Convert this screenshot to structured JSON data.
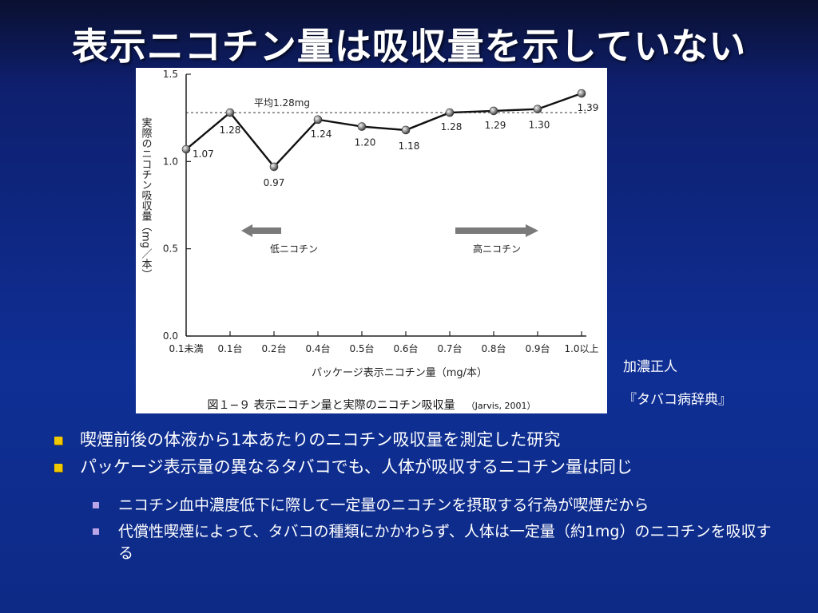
{
  "slide": {
    "title": "表示ニコチン量は吸収量を示していない"
  },
  "figure": {
    "caption": "図１−９ 表示ニコチン量と実際のニコチン吸収量",
    "citation": "（Jarvis, 2001）"
  },
  "side_notes": {
    "author": "加濃正人",
    "book": "『タバコ病辞典』"
  },
  "bullets": [
    "喫煙前後の体液から1本あたりのニコチン吸収量を測定した研究",
    "パッケージ表示量の異なるタバコでも、人体が吸収するニコチン量は同じ"
  ],
  "sub_bullets": [
    "ニコチン血中濃度低下に際して一定量のニコチンを摂取する行為が喫煙だから",
    "代償性喫煙によって、タバコの種類にかかわらず、人体は一定量（約1mg）のニコチンを吸収する"
  ],
  "chart_data": {
    "type": "line",
    "categories": [
      "0.1未満",
      "0.1台",
      "0.2台",
      "0.4台",
      "0.5台",
      "0.6台",
      "0.7台",
      "0.8台",
      "0.9台",
      "1.0以上"
    ],
    "values": [
      1.07,
      1.28,
      0.97,
      1.24,
      1.2,
      1.18,
      1.28,
      1.29,
      1.3,
      1.39
    ],
    "value_labels": [
      "1.07",
      "1.28",
      "0.97",
      "1.24",
      "1.20",
      "1.18",
      "1.28",
      "1.29",
      "1.30",
      "1.39"
    ],
    "xlabel": "パッケージ表示ニコチン量（mg/本）",
    "ylabel": "実際のニコチン吸収量（mg／本）",
    "ylim": [
      0,
      1.5
    ],
    "yticks": [
      "0.0",
      "0.5",
      "1.0",
      "1.5"
    ],
    "reference_line": {
      "value": 1.28,
      "label": "平均1.28mg"
    },
    "annotations": {
      "low_arrow": "低ニコチン",
      "high_arrow": "高ニコチン"
    },
    "colors": {
      "line": "#111111",
      "marker": "#8a8a8a",
      "arrow": "#7a7a7a"
    }
  }
}
